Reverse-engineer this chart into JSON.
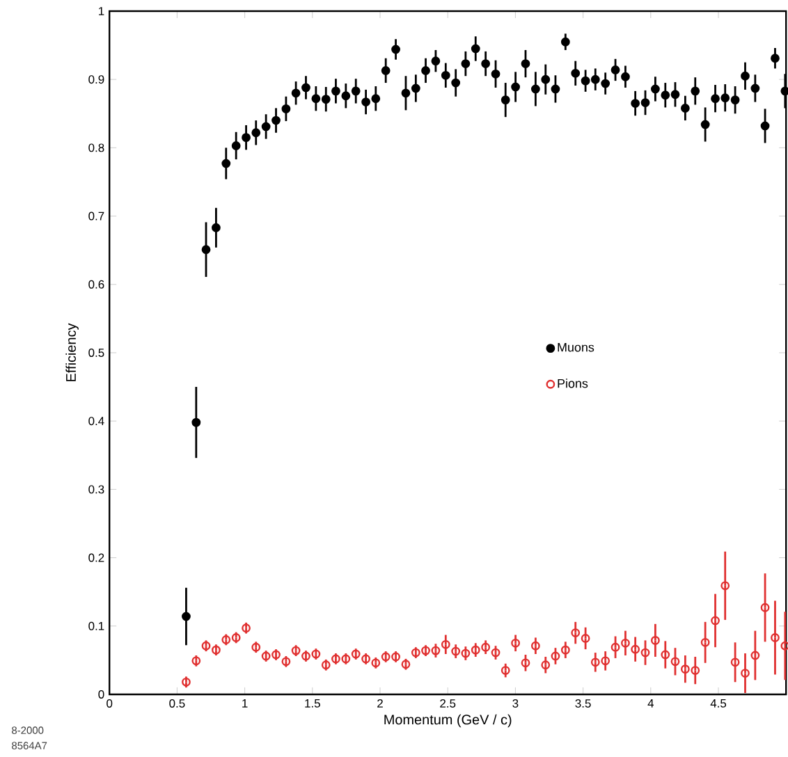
{
  "chart_data": {
    "type": "scatter",
    "xlabel": "Momentum (GeV / c)",
    "ylabel": "Efficiency",
    "x": [
      0.567,
      0.641,
      0.714,
      0.788,
      0.862,
      0.936,
      1.01,
      1.083,
      1.157,
      1.231,
      1.305,
      1.378,
      1.452,
      1.526,
      1.6,
      1.673,
      1.747,
      1.821,
      1.895,
      1.968,
      2.042,
      2.116,
      2.19,
      2.264,
      2.337,
      2.411,
      2.485,
      2.559,
      2.632,
      2.706,
      2.78,
      2.854,
      2.927,
      3.001,
      3.075,
      3.149,
      3.223,
      3.296,
      3.37,
      3.444,
      3.518,
      3.591,
      3.665,
      3.739,
      3.813,
      3.886,
      3.96,
      4.034,
      4.108,
      4.181,
      4.255,
      4.329,
      4.403,
      4.477,
      4.55,
      4.624,
      4.698,
      4.772,
      4.845,
      4.919,
      4.993
    ],
    "series": [
      {
        "name": "Muons",
        "color": "#000000",
        "values": [
          0.114,
          0.398,
          0.651,
          0.683,
          0.777,
          0.803,
          0.815,
          0.822,
          0.831,
          0.84,
          0.857,
          0.88,
          0.888,
          0.872,
          0.871,
          0.883,
          0.876,
          0.883,
          0.867,
          0.872,
          0.913,
          0.944,
          0.88,
          0.887,
          0.913,
          0.927,
          0.906,
          0.895,
          0.923,
          0.945,
          0.923,
          0.908,
          0.87,
          0.889,
          0.923,
          0.886,
          0.9,
          0.886,
          0.955,
          0.909,
          0.898,
          0.9,
          0.894,
          0.914,
          0.904,
          0.865,
          0.866,
          0.886,
          0.877,
          0.878,
          0.858,
          0.883,
          0.834,
          0.872,
          0.873,
          0.87,
          0.905,
          0.887,
          0.832,
          0.931,
          0.883
        ],
        "errors": [
          0.042,
          0.052,
          0.04,
          0.029,
          0.023,
          0.02,
          0.018,
          0.018,
          0.018,
          0.018,
          0.018,
          0.017,
          0.017,
          0.018,
          0.018,
          0.018,
          0.018,
          0.018,
          0.018,
          0.018,
          0.018,
          0.015,
          0.025,
          0.02,
          0.018,
          0.016,
          0.018,
          0.02,
          0.018,
          0.018,
          0.018,
          0.02,
          0.025,
          0.022,
          0.02,
          0.025,
          0.022,
          0.02,
          0.012,
          0.018,
          0.016,
          0.016,
          0.016,
          0.016,
          0.016,
          0.018,
          0.018,
          0.018,
          0.018,
          0.018,
          0.018,
          0.02,
          0.025,
          0.02,
          0.02,
          0.02,
          0.02,
          0.02,
          0.025,
          0.015,
          0.025
        ]
      },
      {
        "name": "Pions",
        "color": "#e03030",
        "values": [
          0.018,
          0.049,
          0.071,
          0.065,
          0.08,
          0.083,
          0.097,
          0.069,
          0.056,
          0.058,
          0.048,
          0.064,
          0.056,
          0.059,
          0.043,
          0.052,
          0.052,
          0.059,
          0.052,
          0.046,
          0.055,
          0.055,
          0.044,
          0.061,
          0.064,
          0.064,
          0.073,
          0.063,
          0.06,
          0.065,
          0.069,
          0.061,
          0.035,
          0.075,
          0.046,
          0.071,
          0.043,
          0.056,
          0.065,
          0.09,
          0.082,
          0.047,
          0.049,
          0.069,
          0.075,
          0.066,
          0.061,
          0.079,
          0.058,
          0.048,
          0.037,
          0.035,
          0.076,
          0.108,
          0.159,
          0.047,
          0.031,
          0.057,
          0.127,
          0.083,
          0.071
        ],
        "errors": [
          0.008,
          0.008,
          0.008,
          0.008,
          0.008,
          0.008,
          0.008,
          0.008,
          0.008,
          0.008,
          0.008,
          0.008,
          0.008,
          0.008,
          0.008,
          0.008,
          0.008,
          0.008,
          0.008,
          0.008,
          0.008,
          0.008,
          0.008,
          0.008,
          0.008,
          0.01,
          0.014,
          0.01,
          0.01,
          0.01,
          0.01,
          0.01,
          0.01,
          0.012,
          0.012,
          0.012,
          0.012,
          0.012,
          0.012,
          0.016,
          0.016,
          0.014,
          0.014,
          0.016,
          0.018,
          0.018,
          0.018,
          0.024,
          0.02,
          0.02,
          0.02,
          0.02,
          0.03,
          0.039,
          0.05,
          0.029,
          0.029,
          0.036,
          0.05,
          0.054,
          0.05
        ]
      }
    ],
    "xlim": [
      0,
      5
    ],
    "ylim": [
      0,
      1
    ],
    "xticks": [
      0,
      0.5,
      1,
      1.5,
      2,
      2.5,
      3,
      3.5,
      4,
      4.5
    ],
    "yticks": [
      0,
      0.1,
      0.2,
      0.3,
      0.4,
      0.5,
      0.6,
      0.7,
      0.8,
      0.9,
      1
    ],
    "marker": "circle",
    "legend": "right",
    "annotations": [
      "8-2000",
      "8564A7"
    ]
  }
}
